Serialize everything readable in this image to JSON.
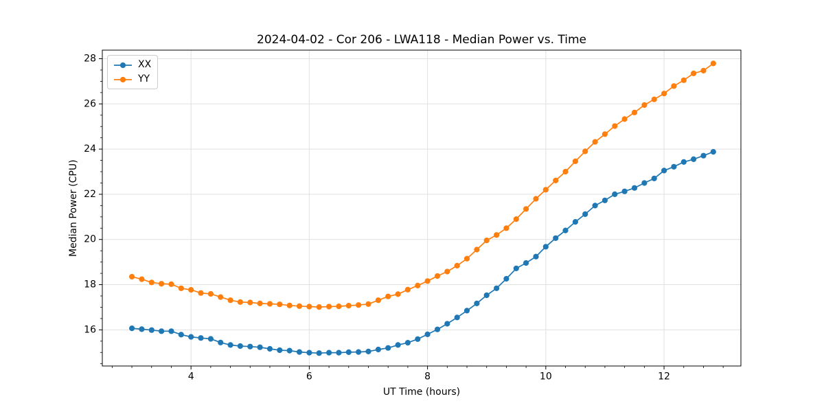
{
  "figure": {
    "title": "2024-04-02 - Cor 206 - LWA118 - Median Power vs. Time"
  },
  "chart_data": {
    "type": "line",
    "title": "2024-04-02 - Cor 206 - LWA118 - Median Power vs. Time",
    "xlabel": "UT Time (hours)",
    "ylabel": "Median Power (CPU)",
    "xlim": [
      2.5,
      13.3
    ],
    "ylim": [
      14.4,
      28.38
    ],
    "xticks": [
      4,
      6,
      8,
      10,
      12
    ],
    "yticks": [
      16,
      18,
      20,
      22,
      24,
      26,
      28
    ],
    "x_minor_step": 0.3333333,
    "y_minor_step": 0.5,
    "grid": "major-both-axes",
    "legend_position": "upper-left",
    "colors": {
      "XX": "#1f77b4",
      "YY": "#ff7f0e",
      "grid": "#e0e0e0",
      "spine": "#000000"
    },
    "x": [
      3.0,
      3.1667,
      3.3333,
      3.5,
      3.6667,
      3.8333,
      4.0,
      4.1667,
      4.3333,
      4.5,
      4.6667,
      4.8333,
      5.0,
      5.1667,
      5.3333,
      5.5,
      5.6667,
      5.8333,
      6.0,
      6.1667,
      6.3333,
      6.5,
      6.6667,
      6.8333,
      7.0,
      7.1667,
      7.3333,
      7.5,
      7.6667,
      7.8333,
      8.0,
      8.1667,
      8.3333,
      8.5,
      8.6667,
      8.8333,
      9.0,
      9.1667,
      9.3333,
      9.5,
      9.6667,
      9.8333,
      10.0,
      10.1667,
      10.3333,
      10.5,
      10.6667,
      10.8333,
      11.0,
      11.1667,
      11.3333,
      11.5,
      11.6667,
      11.8333,
      12.0,
      12.1667,
      12.3333,
      12.5,
      12.6667,
      12.8333
    ],
    "series": [
      {
        "name": "XX",
        "color": "#1f77b4",
        "values": [
          16.07,
          16.03,
          15.99,
          15.94,
          15.94,
          15.79,
          15.69,
          15.64,
          15.6,
          15.44,
          15.33,
          15.28,
          15.26,
          15.23,
          15.16,
          15.1,
          15.08,
          15.02,
          14.99,
          14.97,
          14.99,
          14.99,
          15.01,
          15.02,
          15.04,
          15.13,
          15.2,
          15.33,
          15.43,
          15.59,
          15.8,
          16.02,
          16.27,
          16.55,
          16.85,
          17.17,
          17.53,
          17.84,
          18.26,
          18.72,
          18.96,
          19.24,
          19.68,
          20.06,
          20.4,
          20.78,
          21.12,
          21.5,
          21.73,
          22.0,
          22.13,
          22.28,
          22.5,
          22.7,
          23.05,
          23.22,
          23.43,
          23.55,
          23.71,
          23.88
        ]
      },
      {
        "name": "YY",
        "color": "#ff7f0e",
        "values": [
          18.35,
          18.24,
          18.1,
          18.04,
          18.02,
          17.84,
          17.77,
          17.63,
          17.59,
          17.45,
          17.31,
          17.23,
          17.21,
          17.17,
          17.15,
          17.13,
          17.08,
          17.05,
          17.03,
          17.01,
          17.03,
          17.04,
          17.07,
          17.1,
          17.14,
          17.31,
          17.48,
          17.58,
          17.78,
          17.96,
          18.16,
          18.38,
          18.58,
          18.84,
          19.15,
          19.55,
          19.96,
          20.2,
          20.5,
          20.9,
          21.35,
          21.8,
          22.2,
          22.61,
          23.0,
          23.46,
          23.9,
          24.32,
          24.66,
          25.02,
          25.33,
          25.62,
          25.95,
          26.2,
          26.46,
          26.79,
          27.05,
          27.35,
          27.47,
          27.79
        ]
      }
    ]
  }
}
